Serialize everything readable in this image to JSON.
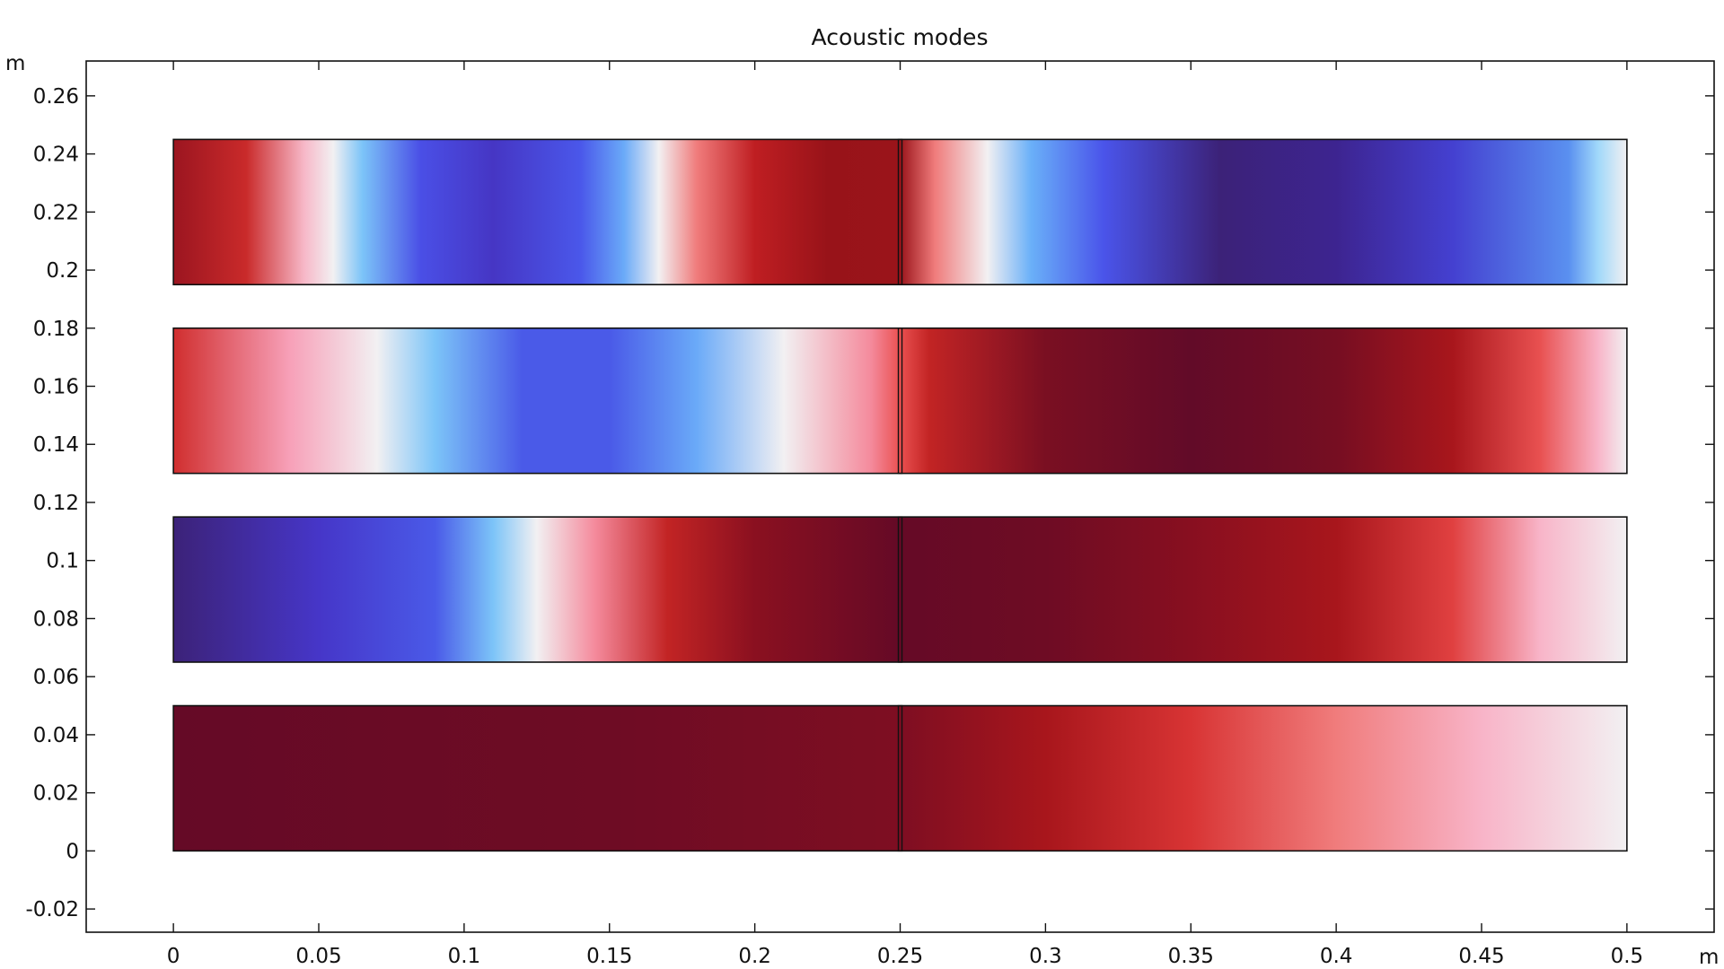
{
  "chart_data": {
    "type": "heatmap",
    "title": "Acoustic modes",
    "xlabel": "m",
    "ylabel": "m",
    "xlim": [
      -0.03,
      0.53
    ],
    "ylim": [
      -0.028,
      0.272
    ],
    "xticks": [
      0,
      0.05,
      0.1,
      0.15,
      0.2,
      0.25,
      0.3,
      0.35,
      0.4,
      0.45,
      0.5
    ],
    "xtick_labels": [
      "0",
      "0.05",
      "0.1",
      "0.15",
      "0.2",
      "0.25",
      "0.3",
      "0.35",
      "0.4",
      "0.45",
      "0.5"
    ],
    "yticks": [
      -0.02,
      0,
      0.02,
      0.04,
      0.06,
      0.08,
      0.1,
      0.12,
      0.14,
      0.16,
      0.18,
      0.2,
      0.22,
      0.24,
      0.26
    ],
    "ytick_labels": [
      "-0.02",
      "0",
      "0.02",
      "0.04",
      "0.06",
      "0.08",
      "0.1",
      "0.12",
      "0.14",
      "0.16",
      "0.18",
      "0.2",
      "0.22",
      "0.24",
      "0.26"
    ],
    "divider_x": 0.25,
    "colormap": "wave (blue-white-red)",
    "strips": [
      {
        "y_range": [
          0.195,
          0.245
        ],
        "x_range": [
          0,
          0.5
        ],
        "stops": [
          [
            0,
            "#9b1520"
          ],
          [
            0.025,
            "#c92a2a"
          ],
          [
            0.045,
            "#f7b8c8"
          ],
          [
            0.055,
            "#f2f0f2"
          ],
          [
            0.065,
            "#7cc4f8"
          ],
          [
            0.085,
            "#4a4fe6"
          ],
          [
            0.11,
            "#4636c4"
          ],
          [
            0.14,
            "#4a57ea"
          ],
          [
            0.155,
            "#6aaaf8"
          ],
          [
            0.167,
            "#f2f0f2"
          ],
          [
            0.18,
            "#f07c7c"
          ],
          [
            0.2,
            "#bf1e22"
          ],
          [
            0.225,
            "#981319"
          ],
          [
            0.25,
            "#9a141a"
          ],
          [
            0.262,
            "#f07c7c"
          ],
          [
            0.28,
            "#f2f0f2"
          ],
          [
            0.295,
            "#6ab0f8"
          ],
          [
            0.32,
            "#4a54ea"
          ],
          [
            0.36,
            "#3c2278"
          ],
          [
            0.4,
            "#3d2490"
          ],
          [
            0.44,
            "#4440d0"
          ],
          [
            0.48,
            "#5a90f0"
          ],
          [
            0.49,
            "#a0d8fa"
          ],
          [
            0.5,
            "#f2f0f2"
          ]
        ]
      },
      {
        "y_range": [
          0.13,
          0.18
        ],
        "x_range": [
          0,
          0.5
        ],
        "stops": [
          [
            0,
            "#d02e2e"
          ],
          [
            0.04,
            "#f7a0b8"
          ],
          [
            0.07,
            "#f2f0f2"
          ],
          [
            0.09,
            "#7cc4f8"
          ],
          [
            0.12,
            "#4a5ae8"
          ],
          [
            0.15,
            "#4a5ae8"
          ],
          [
            0.18,
            "#6aaaf8"
          ],
          [
            0.21,
            "#f2f0f2"
          ],
          [
            0.24,
            "#f48a9c"
          ],
          [
            0.25,
            "#ea5050"
          ],
          [
            0.26,
            "#c22424"
          ],
          [
            0.3,
            "#7a0f22"
          ],
          [
            0.35,
            "#620b28"
          ],
          [
            0.4,
            "#760e22"
          ],
          [
            0.44,
            "#a8161c"
          ],
          [
            0.47,
            "#e85050"
          ],
          [
            0.49,
            "#f8b4c8"
          ],
          [
            0.5,
            "#f2f0f2"
          ]
        ]
      },
      {
        "y_range": [
          0.065,
          0.115
        ],
        "x_range": [
          0,
          0.5
        ],
        "stops": [
          [
            0,
            "#3c2278"
          ],
          [
            0.05,
            "#4636c8"
          ],
          [
            0.09,
            "#4a5ae8"
          ],
          [
            0.11,
            "#7cc4f8"
          ],
          [
            0.125,
            "#f2f0f2"
          ],
          [
            0.145,
            "#f48a9c"
          ],
          [
            0.17,
            "#c22424"
          ],
          [
            0.2,
            "#8a1020"
          ],
          [
            0.25,
            "#650a26"
          ],
          [
            0.3,
            "#6e0c24"
          ],
          [
            0.35,
            "#880f20"
          ],
          [
            0.4,
            "#a8161c"
          ],
          [
            0.44,
            "#e04040"
          ],
          [
            0.47,
            "#f8b4c8"
          ],
          [
            0.5,
            "#f2f0f2"
          ]
        ]
      },
      {
        "y_range": [
          0.0,
          0.05
        ],
        "x_range": [
          0,
          0.5
        ],
        "stops": [
          [
            0,
            "#650a26"
          ],
          [
            0.15,
            "#6e0c24"
          ],
          [
            0.25,
            "#7e0e22"
          ],
          [
            0.3,
            "#a8161c"
          ],
          [
            0.35,
            "#d83434"
          ],
          [
            0.4,
            "#f07c7c"
          ],
          [
            0.45,
            "#f8b4c8"
          ],
          [
            0.5,
            "#f2f0f2"
          ]
        ]
      }
    ]
  }
}
